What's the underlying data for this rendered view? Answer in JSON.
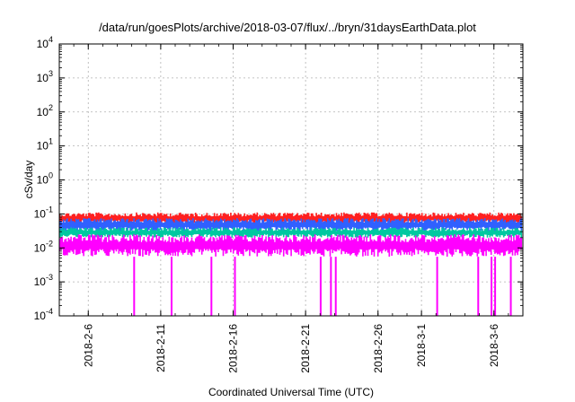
{
  "chart_data": {
    "type": "line",
    "title": "/data/run/goesPlots/archive/2018-03-07/flux/../bryn/31daysEarthData.plot",
    "xlabel": "Coordinated Universal Time (UTC)",
    "ylabel": "cSv/day",
    "yscale": "log",
    "ylim": [
      0.0001,
      10000
    ],
    "xlim": [
      "2018-02-04",
      "2018-03-08"
    ],
    "grid": true,
    "legend": "none",
    "y_ticks": [
      {
        "base": "10",
        "exp": "-4",
        "value": 0.0001
      },
      {
        "base": "10",
        "exp": "-3",
        "value": 0.001
      },
      {
        "base": "10",
        "exp": "-2",
        "value": 0.01
      },
      {
        "base": "10",
        "exp": "-1",
        "value": 0.1
      },
      {
        "base": "10",
        "exp": "0",
        "value": 1
      },
      {
        "base": "10",
        "exp": "1",
        "value": 10
      },
      {
        "base": "10",
        "exp": "2",
        "value": 100
      },
      {
        "base": "10",
        "exp": "3",
        "value": 1000
      },
      {
        "base": "10",
        "exp": "4",
        "value": 10000
      }
    ],
    "x_ticks": [
      {
        "label": "2018-2-6",
        "date": "2018-02-06"
      },
      {
        "label": "2018-2-11",
        "date": "2018-02-11"
      },
      {
        "label": "2018-2-16",
        "date": "2018-02-16"
      },
      {
        "label": "2018-2-21",
        "date": "2018-02-21"
      },
      {
        "label": "2018-2-26",
        "date": "2018-02-26"
      },
      {
        "label": "2018-3-1",
        "date": "2018-03-01"
      },
      {
        "label": "2018-3-6",
        "date": "2018-03-06"
      }
    ],
    "series": [
      {
        "color": "#ff2020",
        "low": 0.05,
        "high": 0.11
      },
      {
        "color": "#3060ff",
        "low": 0.03,
        "high": 0.075
      },
      {
        "color": "#00c8a0",
        "low": 0.02,
        "high": 0.04
      },
      {
        "color": "#ff00ff",
        "low": 0.0055,
        "high": 0.025,
        "dips": [
          {
            "date": "2018-02-09 04:00",
            "value": 0.0001
          },
          {
            "date": "2018-02-11 18:00",
            "value": 0.0001
          },
          {
            "date": "2018-02-14 12:00",
            "value": 0.0001
          },
          {
            "date": "2018-02-16 03:00",
            "value": 0.0001
          },
          {
            "date": "2018-02-22 01:00",
            "value": 0.0001
          },
          {
            "date": "2018-02-22 18:00",
            "value": 0.0001
          },
          {
            "date": "2018-02-23 02:00",
            "value": 0.0001
          },
          {
            "date": "2018-03-02 02:00",
            "value": 0.0001
          },
          {
            "date": "2018-03-04 22:00",
            "value": 0.0001
          },
          {
            "date": "2018-03-05 20:00",
            "value": 0.0001
          },
          {
            "date": "2018-03-06 02:00",
            "value": 0.0001
          },
          {
            "date": "2018-03-07 04:00",
            "value": 0.0001
          }
        ]
      }
    ]
  }
}
